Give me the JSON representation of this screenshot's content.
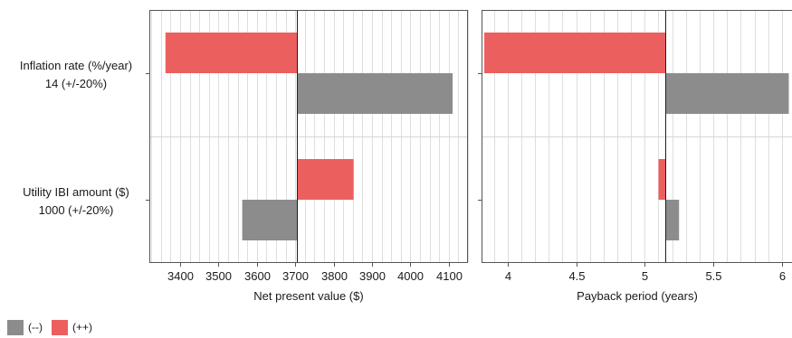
{
  "chart_data": {
    "type": "bar",
    "orientation": "horizontal tornado",
    "categories": [
      {
        "line1": "Inflation rate (%/year)",
        "line2": "14 (+/-20%)"
      },
      {
        "line1": "Utility IBI amount ($)",
        "line2": "1000 (+/-20%)"
      }
    ],
    "legend": [
      {
        "name": "(--)",
        "color": "#8c8c8c"
      },
      {
        "name": "(++)",
        "color": "#ec5f5f"
      }
    ],
    "panels": [
      {
        "xlabel": "Net present value ($)",
        "xlim": [
          3320,
          4150
        ],
        "baseline": 3705,
        "ticks": [
          3400,
          3500,
          3600,
          3700,
          3800,
          3900,
          4000,
          4100
        ],
        "minor_step": 25,
        "series": [
          {
            "name": "(++)",
            "values": [
              3362,
              3852
            ]
          },
          {
            "name": "(--)",
            "values": [
              4110,
              3562
            ]
          }
        ]
      },
      {
        "xlabel": "Payback period (years)",
        "xlim": [
          3.81,
          6.08
        ],
        "baseline": 5.15,
        "ticks": [
          4,
          4.5,
          5,
          5.5,
          6
        ],
        "minor_step": 0.1,
        "series": [
          {
            "name": "(++)",
            "values": [
              3.83,
              5.1
            ]
          },
          {
            "name": "(--)",
            "values": [
              6.05,
              5.25
            ]
          }
        ]
      }
    ]
  }
}
